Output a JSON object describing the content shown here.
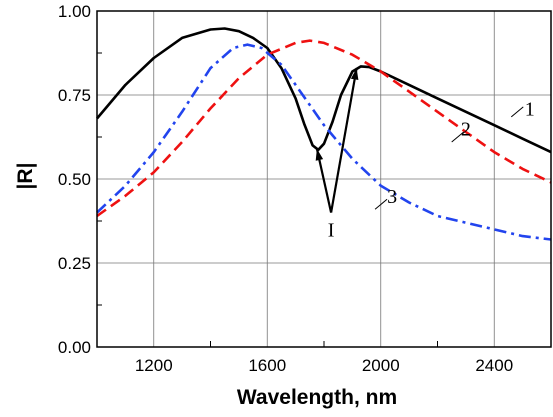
{
  "chart_data": {
    "type": "line",
    "xlabel": "Wavelength,  nm",
    "ylabel": "|R|",
    "xlim": [
      1000,
      2600
    ],
    "ylim": [
      0,
      1
    ],
    "x_ticks": [
      1200,
      1600,
      2000,
      2400
    ],
    "x_minor_ticks": [
      1400,
      1800,
      2200
    ],
    "y_ticks": [
      "0.00",
      "0.25",
      "0.50",
      "0.75",
      "1.00"
    ],
    "grid": true,
    "series": [
      {
        "name": "1",
        "color": "#000000",
        "dash": "solid",
        "points": [
          [
            1000,
            0.68
          ],
          [
            1100,
            0.78
          ],
          [
            1200,
            0.86
          ],
          [
            1300,
            0.92
          ],
          [
            1400,
            0.945
          ],
          [
            1450,
            0.948
          ],
          [
            1500,
            0.94
          ],
          [
            1550,
            0.92
          ],
          [
            1600,
            0.89
          ],
          [
            1650,
            0.83
          ],
          [
            1700,
            0.74
          ],
          [
            1730,
            0.665
          ],
          [
            1760,
            0.6
          ],
          [
            1780,
            0.587
          ],
          [
            1800,
            0.605
          ],
          [
            1830,
            0.67
          ],
          [
            1860,
            0.75
          ],
          [
            1900,
            0.82
          ],
          [
            1930,
            0.835
          ],
          [
            1960,
            0.833
          ],
          [
            2000,
            0.82
          ],
          [
            2100,
            0.78
          ],
          [
            2200,
            0.74
          ],
          [
            2300,
            0.7
          ],
          [
            2400,
            0.66
          ],
          [
            2500,
            0.62
          ],
          [
            2600,
            0.58
          ]
        ]
      },
      {
        "name": "2",
        "color": "#ee1111",
        "dash": "dash",
        "points": [
          [
            1000,
            0.39
          ],
          [
            1100,
            0.45
          ],
          [
            1200,
            0.52
          ],
          [
            1300,
            0.61
          ],
          [
            1400,
            0.71
          ],
          [
            1500,
            0.8
          ],
          [
            1600,
            0.87
          ],
          [
            1700,
            0.905
          ],
          [
            1750,
            0.912
          ],
          [
            1800,
            0.905
          ],
          [
            1900,
            0.87
          ],
          [
            2000,
            0.82
          ],
          [
            2100,
            0.76
          ],
          [
            2200,
            0.7
          ],
          [
            2300,
            0.64
          ],
          [
            2400,
            0.58
          ],
          [
            2500,
            0.53
          ],
          [
            2600,
            0.49
          ]
        ]
      },
      {
        "name": "3",
        "color": "#2244ee",
        "dash": "dashdot",
        "points": [
          [
            1000,
            0.4
          ],
          [
            1100,
            0.48
          ],
          [
            1200,
            0.58
          ],
          [
            1300,
            0.7
          ],
          [
            1400,
            0.83
          ],
          [
            1480,
            0.89
          ],
          [
            1530,
            0.9
          ],
          [
            1580,
            0.89
          ],
          [
            1650,
            0.84
          ],
          [
            1700,
            0.78
          ],
          [
            1800,
            0.66
          ],
          [
            1900,
            0.56
          ],
          [
            2000,
            0.48
          ],
          [
            2100,
            0.43
          ],
          [
            2200,
            0.39
          ],
          [
            2300,
            0.37
          ],
          [
            2400,
            0.35
          ],
          [
            2500,
            0.33
          ],
          [
            2600,
            0.32
          ]
        ]
      }
    ],
    "curve_labels": [
      "1",
      "2",
      "3"
    ],
    "annotation": {
      "text": "I",
      "origin": [
        1825,
        0.4
      ],
      "arrow_targets": [
        [
          1775,
          0.59
        ],
        [
          1915,
          0.83
        ]
      ]
    }
  }
}
